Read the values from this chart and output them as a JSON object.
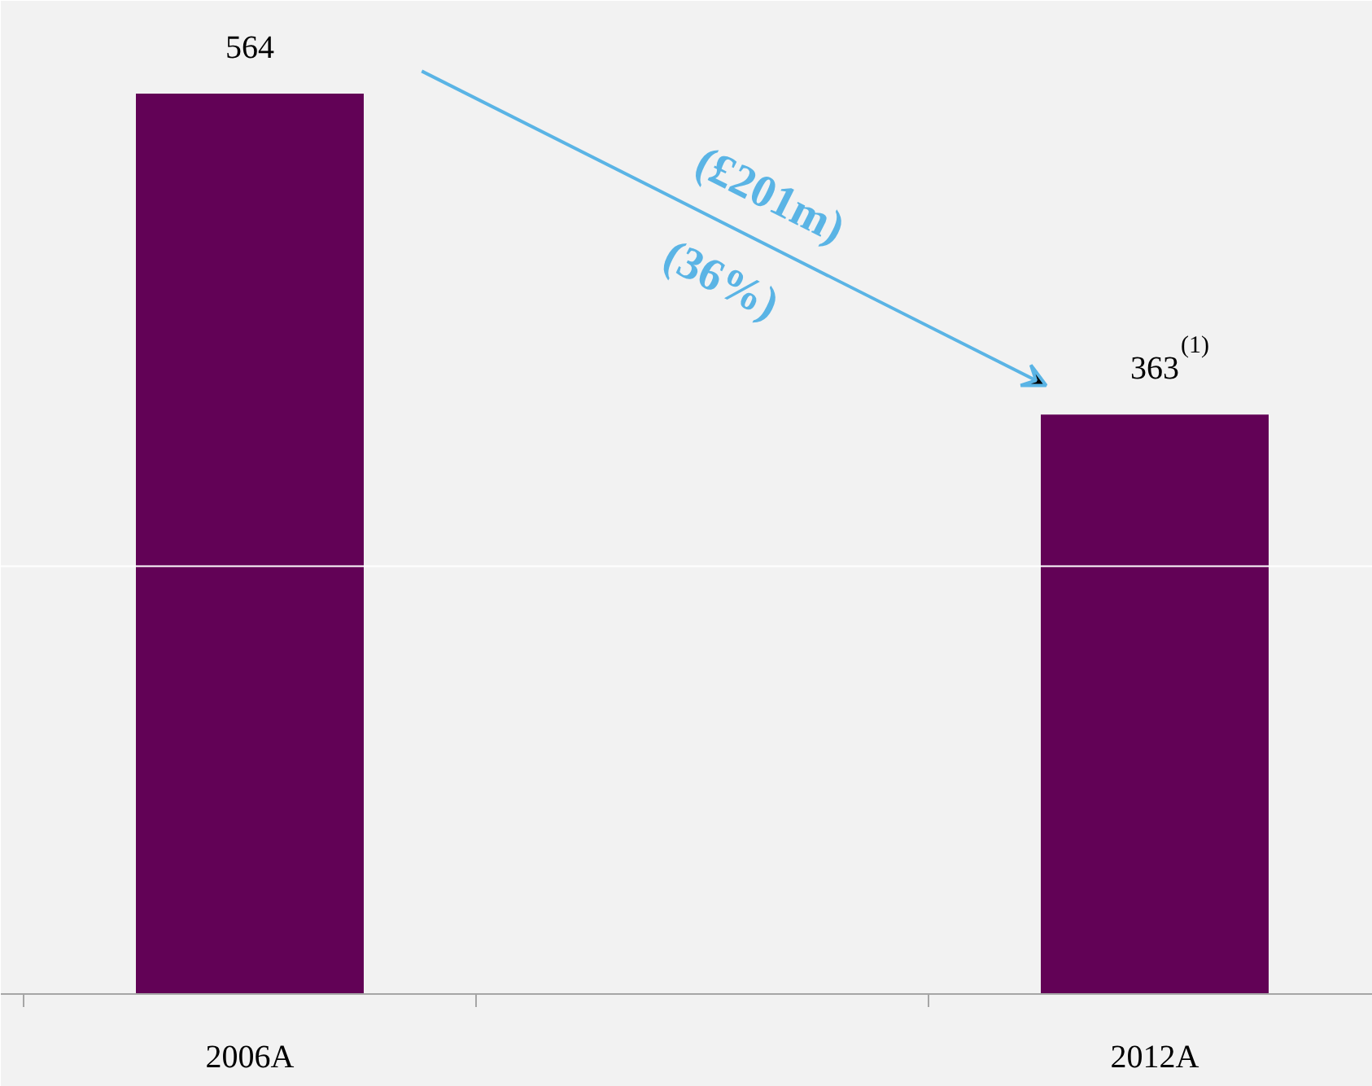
{
  "chart_data": {
    "type": "bar",
    "categories": [
      "2006A",
      null,
      "2012A"
    ],
    "values": [
      564,
      null,
      363
    ],
    "colors": [
      "#620256",
      "#620256",
      "#620256"
    ],
    "value_labels": [
      "564",
      null,
      "363$^{(1)}$"
    ],
    "annotations": [
      "(£201m)",
      "(36%)"
    ],
    "ref_lines": [
      {
        "axis": "y",
        "value": 268,
        "color": "#ffffff"
      }
    ],
    "grid": false
  }
}
